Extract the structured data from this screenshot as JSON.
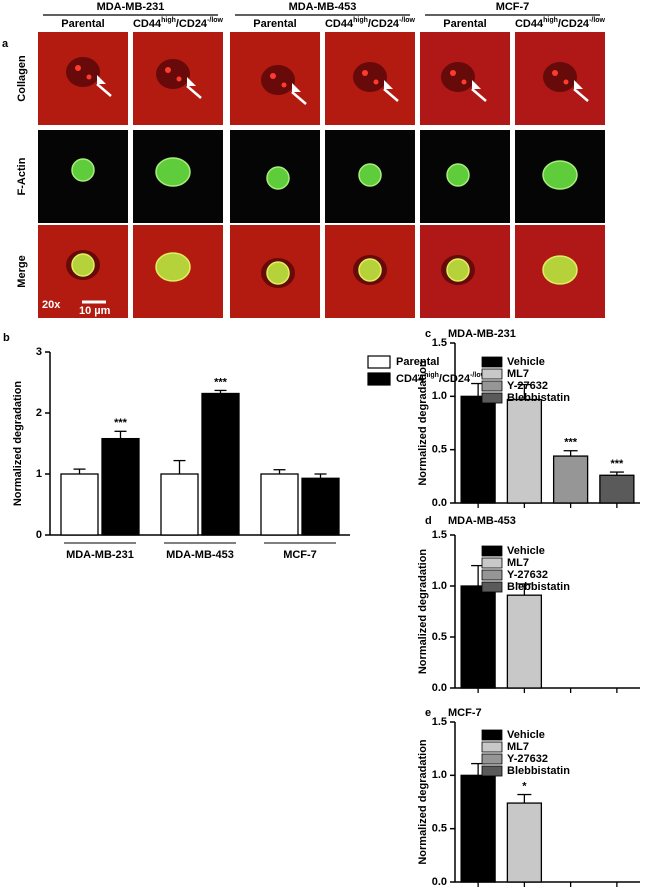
{
  "panel_a": {
    "label": "a",
    "groups": [
      "MDA-MB-231",
      "MDA-MB-453",
      "MCF-7"
    ],
    "subheaders": {
      "parental": "Parental",
      "selected": [
        "CD44",
        "high",
        "/CD24",
        "-/low"
      ]
    },
    "rows": [
      "Collagen",
      "F-Actin",
      "Merge"
    ],
    "magnification": "20x",
    "scale_bar": "10 µm"
  },
  "chart_data": [
    {
      "type": "bar",
      "panel": "b",
      "ylabel": "Normalized degradation",
      "categories": [
        "MDA-MB-231",
        "MDA-MB-453",
        "MCF-7"
      ],
      "series": [
        {
          "name": "Parental",
          "color": "#ffffff",
          "values": [
            1,
            1,
            1
          ],
          "errors": [
            0.08,
            0.22,
            0.07
          ]
        },
        {
          "name": [
            "CD44",
            "high",
            "/CD24",
            "-/low"
          ],
          "color": "#000000",
          "values": [
            1.58,
            2.32,
            0.93
          ],
          "errors": [
            0.12,
            0.05,
            0.07
          ],
          "annotations": [
            "***",
            "***",
            null
          ]
        }
      ],
      "ylim": [
        0,
        3
      ],
      "yticks": [
        0,
        1,
        2,
        3
      ]
    },
    {
      "type": "bar",
      "panel": "c",
      "title": "MDA-MB-231",
      "ylabel": "Normalized degradation",
      "categories": [
        "Vehicle",
        "ML7",
        "Y-27632",
        "Blebbistatin"
      ],
      "colors": [
        "#000000",
        "#c8c8c8",
        "#969696",
        "#5a5a5a"
      ],
      "values": [
        1,
        0.97,
        0.44,
        0.26
      ],
      "errors": [
        0.12,
        0.14,
        0.05,
        0.03
      ],
      "annotations": [
        null,
        null,
        "***",
        "***"
      ],
      "ylim": [
        0,
        1.5
      ],
      "yticks": [
        {
          "value": 0,
          "label": "0.0"
        },
        0.5,
        {
          "value": 1,
          "label": "1.0"
        },
        1.5
      ]
    },
    {
      "type": "bar",
      "panel": "d",
      "title": "MDA-MB-453",
      "ylabel": "Normalized degradation",
      "categories": [
        "Vehicle",
        "ML7",
        "Y-27632",
        "Blebbistatin"
      ],
      "colors": [
        "#000000",
        "#c8c8c8",
        "#969696",
        "#5a5a5a"
      ],
      "values": [
        1,
        0.91,
        null,
        null
      ],
      "errors": [
        0.2,
        0.11,
        null,
        null
      ],
      "ylim": [
        0,
        1.5
      ],
      "yticks": [
        {
          "value": 0,
          "label": "0.0"
        },
        0.5,
        {
          "value": 1,
          "label": "1.0"
        },
        1.5
      ]
    },
    {
      "type": "bar",
      "panel": "e",
      "title": "MCF-7",
      "ylabel": "Normalized degradation",
      "categories": [
        "Vehicle",
        "ML7",
        "Y-27632",
        "Blebbistatin"
      ],
      "colors": [
        "#000000",
        "#c8c8c8",
        "#969696",
        "#5a5a5a"
      ],
      "values": [
        1,
        0.74,
        null,
        null
      ],
      "errors": [
        0.11,
        0.08,
        null,
        null
      ],
      "annotations": [
        null,
        "*",
        null,
        null
      ],
      "ylim": [
        0,
        1.5
      ],
      "yticks": [
        {
          "value": 0,
          "label": "0.0"
        },
        0.5,
        {
          "value": 1,
          "label": "1.0"
        },
        1.5
      ]
    }
  ]
}
